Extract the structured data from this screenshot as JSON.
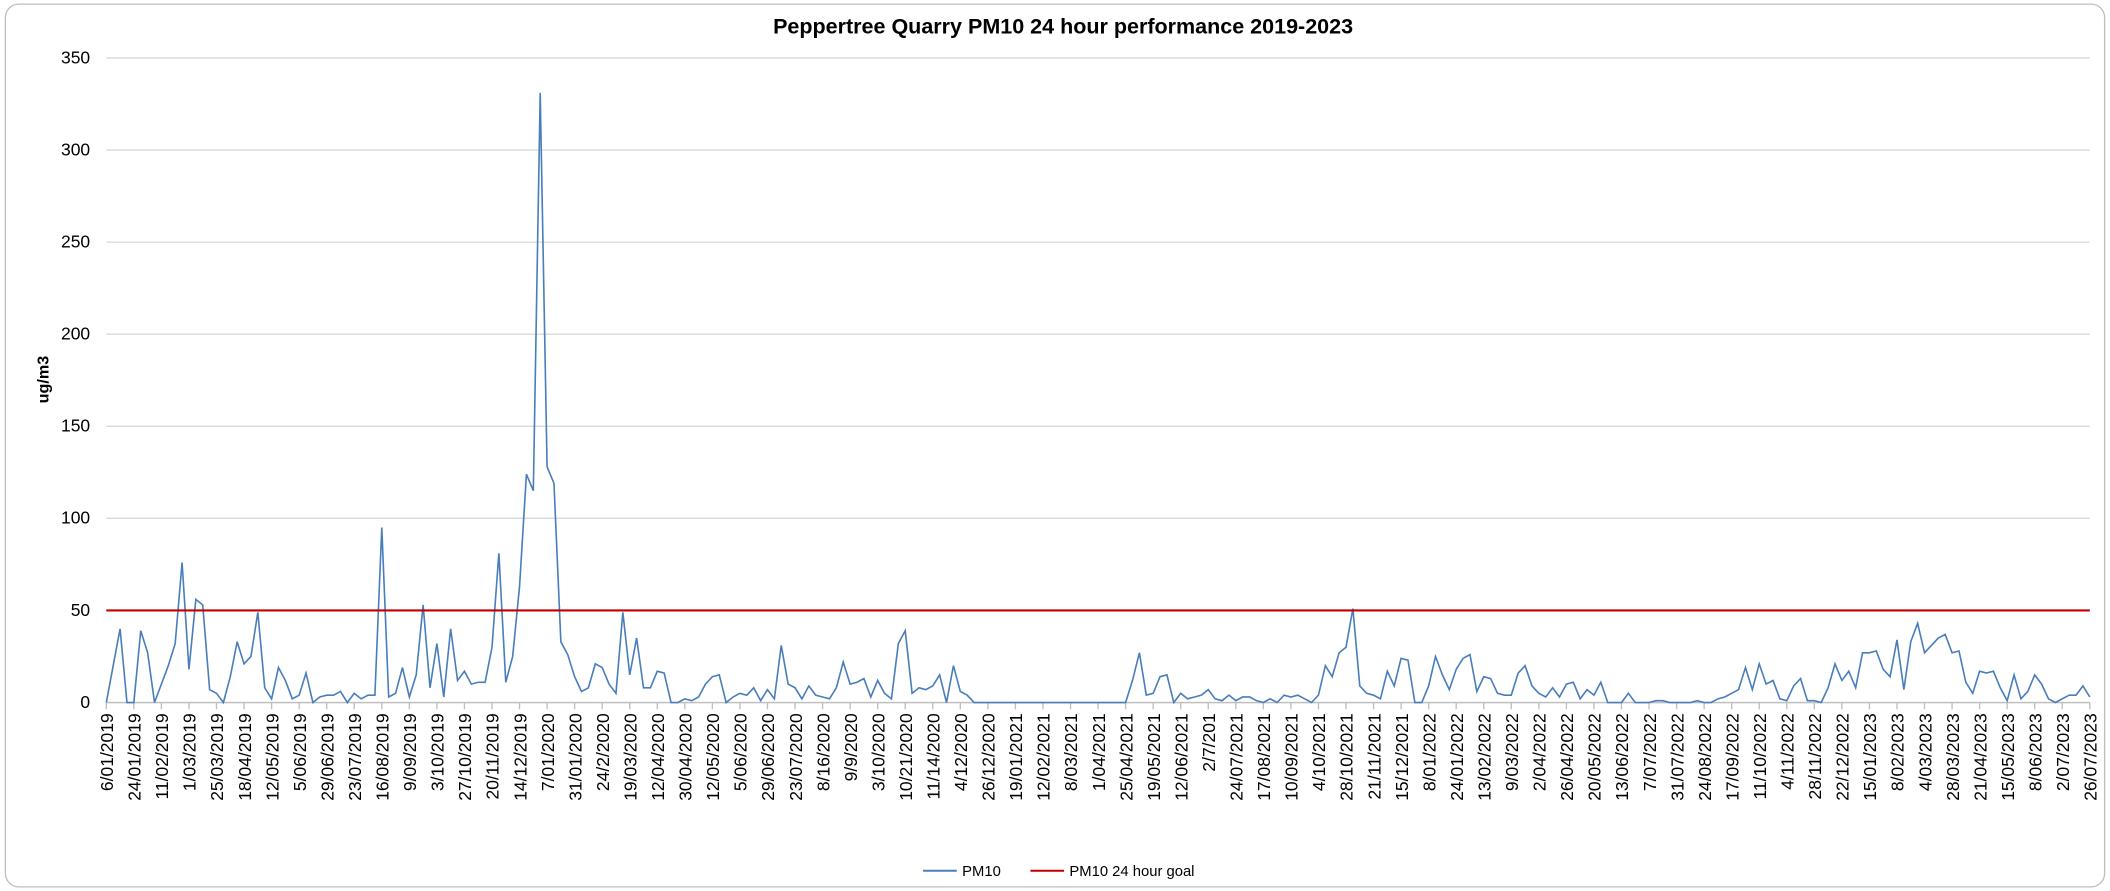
{
  "chart_data": {
    "type": "line",
    "title": "Peppertree Quarry PM10 24 hour performance 2019-2023",
    "y_label": "ug/m3",
    "ylim": [
      0,
      350
    ],
    "yticks": [
      0,
      50,
      100,
      150,
      200,
      250,
      300,
      350
    ],
    "grid": true,
    "legend": "bottom",
    "categories": [
      "6/01/2019",
      null,
      null,
      null,
      "24/01/2019",
      null,
      null,
      null,
      "11/02/2019",
      null,
      null,
      null,
      "1/03/2019",
      null,
      null,
      null,
      "25/03/2019",
      null,
      null,
      null,
      "18/04/2019",
      null,
      null,
      null,
      "12/05/2019",
      null,
      null,
      null,
      "5/06/2019",
      null,
      null,
      null,
      "29/06/2019",
      null,
      null,
      null,
      "23/07/2019",
      null,
      null,
      null,
      "16/08/2019",
      null,
      null,
      null,
      "9/09/2019",
      null,
      null,
      null,
      "3/10/2019",
      null,
      null,
      null,
      "27/10/2019",
      null,
      null,
      null,
      "20/11/2019",
      null,
      null,
      null,
      "14/12/2019",
      null,
      null,
      null,
      "7/01/2020",
      null,
      null,
      null,
      "31/01/2020",
      null,
      null,
      null,
      "24/2/2020",
      null,
      null,
      null,
      "19/03/2020",
      null,
      null,
      null,
      "12/04/2020",
      null,
      null,
      null,
      "30/04/2020",
      null,
      null,
      null,
      "12/05/2020",
      null,
      null,
      null,
      "5/06/2020",
      null,
      null,
      null,
      "29/06/2020",
      null,
      null,
      null,
      "23/07/2020",
      null,
      null,
      null,
      "8/16/2020",
      null,
      null,
      null,
      "9/9/2020",
      null,
      null,
      null,
      "3/10/2020",
      null,
      null,
      null,
      "10/21/2020",
      null,
      null,
      null,
      "11/14/2020",
      null,
      null,
      null,
      "4/12/2020",
      null,
      null,
      null,
      "26/12/2020",
      null,
      null,
      null,
      "19/01/2021",
      null,
      null,
      null,
      "12/02/2021",
      null,
      null,
      null,
      "8/03/2021",
      null,
      null,
      null,
      "1/04/2021",
      null,
      null,
      null,
      "25/04/2021",
      null,
      null,
      null,
      "19/05/2021",
      null,
      null,
      null,
      "12/06/2021",
      null,
      null,
      null,
      "2/7/201",
      null,
      null,
      null,
      "24/07/2021",
      null,
      null,
      null,
      "17/08/2021",
      null,
      null,
      null,
      "10/09/2021",
      null,
      null,
      null,
      "4/10/2021",
      null,
      null,
      null,
      "28/10/2021",
      null,
      null,
      null,
      "21/11/2021",
      null,
      null,
      null,
      "15/12/2021",
      null,
      null,
      null,
      "8/01/2022",
      null,
      null,
      null,
      "24/01/2022",
      null,
      null,
      null,
      "13/02/2022",
      null,
      null,
      null,
      "9/03/2022",
      null,
      null,
      null,
      "2/04/2022",
      null,
      null,
      null,
      "26/04/2022",
      null,
      null,
      null,
      "20/05/2022",
      null,
      null,
      null,
      "13/06/2022",
      null,
      null,
      null,
      "7/07/2022",
      null,
      null,
      null,
      "31/07/2022",
      null,
      null,
      null,
      "24/08/2022",
      null,
      null,
      null,
      "17/09/2022",
      null,
      null,
      null,
      "11/10/2022",
      null,
      null,
      null,
      "4/11/2022",
      null,
      null,
      null,
      "28/11/2022",
      null,
      null,
      null,
      "22/12/2022",
      null,
      null,
      null,
      "15/01/2023",
      null,
      null,
      null,
      "8/02/2023",
      null,
      null,
      null,
      "4/03/2023",
      null,
      null,
      null,
      "28/03/2023",
      null,
      null,
      null,
      "21/04/2023",
      null,
      null,
      null,
      "15/05/2023",
      null,
      null,
      null,
      "8/06/2023",
      null,
      null,
      null,
      "2/07/2023",
      null,
      null,
      null,
      "26/07/2023"
    ],
    "series": [
      {
        "name": "PM10",
        "color": "#4a7ebb",
        "values": [
          0,
          20,
          40,
          0,
          0,
          39,
          27,
          0,
          10,
          20,
          32,
          76,
          18,
          56,
          53,
          7,
          5,
          0,
          14,
          33,
          21,
          25,
          49,
          8,
          2,
          19,
          12,
          2,
          4,
          16,
          0,
          3,
          4,
          4,
          6,
          0,
          5,
          2,
          4,
          4,
          95,
          3,
          5,
          19,
          3,
          15,
          53,
          8,
          32,
          3,
          40,
          12,
          17,
          10,
          11,
          11,
          30,
          81,
          11,
          25,
          63,
          124,
          115,
          331,
          128,
          119,
          33,
          26,
          14,
          6,
          8,
          21,
          19,
          10,
          5,
          49,
          15,
          35,
          8,
          8,
          17,
          16,
          0,
          0,
          2,
          1,
          3,
          10,
          14,
          15,
          0,
          3,
          5,
          4,
          8,
          1,
          7,
          2,
          31,
          10,
          8,
          2,
          9,
          4,
          3,
          2,
          8,
          22,
          10,
          11,
          13,
          3,
          12,
          5,
          2,
          32,
          39,
          5,
          8,
          7,
          9,
          15,
          0,
          20,
          6,
          4,
          0,
          0,
          0,
          0,
          0,
          0,
          0,
          0,
          0,
          0,
          0,
          0,
          0,
          0,
          0,
          0,
          0,
          0,
          0,
          0,
          0,
          0,
          0,
          12,
          27,
          4,
          5,
          14,
          15,
          0,
          5,
          2,
          3,
          4,
          7,
          2,
          1,
          4,
          1,
          3,
          3,
          1,
          0,
          2,
          0,
          4,
          3,
          4,
          2,
          0,
          4,
          20,
          14,
          27,
          30,
          51,
          9,
          5,
          4,
          2,
          17,
          9,
          24,
          23,
          0,
          0,
          9,
          25,
          15,
          7,
          18,
          24,
          26,
          6,
          14,
          13,
          5,
          4,
          4,
          16,
          20,
          9,
          5,
          3,
          8,
          3,
          10,
          11,
          2,
          7,
          4,
          11,
          0,
          0,
          0,
          5,
          0,
          0,
          0,
          1,
          1,
          0,
          0,
          0,
          0,
          1,
          0,
          0,
          2,
          3,
          5,
          7,
          19,
          7,
          21,
          10,
          12,
          2,
          1,
          9,
          13,
          1,
          1,
          0,
          8,
          21,
          12,
          17,
          8,
          27,
          27,
          28,
          18,
          14,
          34,
          7,
          33,
          43,
          27,
          31,
          35,
          37,
          27,
          28,
          11,
          5,
          17,
          16,
          17,
          8,
          1,
          15,
          2,
          6,
          15,
          10,
          2,
          0,
          2,
          4,
          4,
          9,
          3
        ]
      },
      {
        "name": "PM10 24 hour goal",
        "color": "#c00000",
        "values": [
          50,
          50,
          50,
          50,
          50,
          50,
          50,
          50,
          50,
          50,
          50,
          50,
          50,
          50,
          50,
          50,
          50,
          50,
          50,
          50,
          50,
          50,
          50,
          50,
          50,
          50,
          50,
          50,
          50,
          50,
          50,
          50,
          50,
          50,
          50,
          50,
          50,
          50,
          50,
          50,
          50,
          50,
          50,
          50,
          50,
          50,
          50,
          50,
          50,
          50,
          50,
          50,
          50,
          50,
          50,
          50,
          50,
          50,
          50,
          50,
          50,
          50,
          50,
          50,
          50,
          50,
          50,
          50,
          50,
          50,
          50,
          50,
          50,
          50,
          50,
          50,
          50,
          50,
          50,
          50,
          50,
          50,
          50,
          50,
          50,
          50,
          50,
          50,
          50,
          50,
          50,
          50,
          50,
          50,
          50,
          50,
          50,
          50,
          50,
          50,
          50,
          50,
          50,
          50,
          50,
          50,
          50,
          50,
          50,
          50,
          50,
          50,
          50,
          50,
          50,
          50,
          50,
          50,
          50,
          50,
          50,
          50,
          50,
          50,
          50,
          50,
          50,
          50,
          50,
          50,
          50,
          50,
          50,
          50,
          50,
          50,
          50,
          50,
          50,
          50,
          50,
          50,
          50,
          50,
          50,
          50,
          50,
          50,
          50,
          50,
          50,
          50,
          50,
          50,
          50,
          50,
          50,
          50,
          50,
          50,
          50,
          50,
          50,
          50,
          50,
          50,
          50,
          50,
          50,
          50,
          50,
          50,
          50,
          50,
          50,
          50,
          50,
          50,
          50,
          50,
          50,
          50,
          50,
          50,
          50,
          50,
          50,
          50,
          50,
          50,
          50,
          50,
          50,
          50,
          50,
          50,
          50,
          50,
          50,
          50,
          50,
          50,
          50,
          50,
          50,
          50,
          50,
          50,
          50,
          50,
          50,
          50,
          50,
          50,
          50,
          50,
          50,
          50,
          50,
          50,
          50,
          50,
          50,
          50,
          50,
          50,
          50,
          50,
          50,
          50,
          50,
          50,
          50,
          50,
          50,
          50,
          50,
          50,
          50,
          50,
          50,
          50,
          50,
          50,
          50,
          50,
          50,
          50,
          50,
          50,
          50,
          50,
          50,
          50,
          50,
          50,
          50,
          50,
          50,
          50,
          50,
          50,
          50,
          50,
          50,
          50,
          50,
          50,
          50,
          50,
          50,
          50,
          50,
          50,
          50,
          50,
          50,
          50,
          50,
          50,
          50,
          50,
          50,
          50,
          50,
          50,
          50,
          50,
          50
        ]
      }
    ]
  }
}
